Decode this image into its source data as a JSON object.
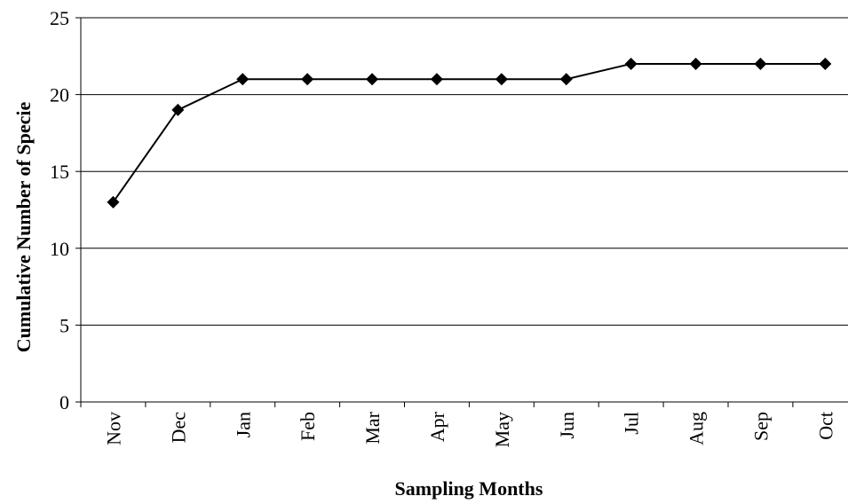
{
  "chart_data": {
    "type": "line",
    "title": "",
    "xlabel": "Sampling Months",
    "ylabel": "Cumulative Number of Specie",
    "categories": [
      "Nov",
      "Dec",
      "Jan",
      "Feb",
      "Mar",
      "Apr",
      "May",
      "Jun",
      "Jul",
      "Aug",
      "Sep",
      "Oct"
    ],
    "series": [
      {
        "values": [
          13,
          19,
          21,
          21,
          21,
          21,
          21,
          21,
          22,
          22,
          22,
          22
        ],
        "color": "#000000",
        "marker": "diamond"
      }
    ],
    "ylim": [
      0,
      25
    ],
    "yticks": [
      0,
      5,
      10,
      15,
      20,
      25
    ],
    "grid": "horizontal",
    "legend": "none"
  }
}
